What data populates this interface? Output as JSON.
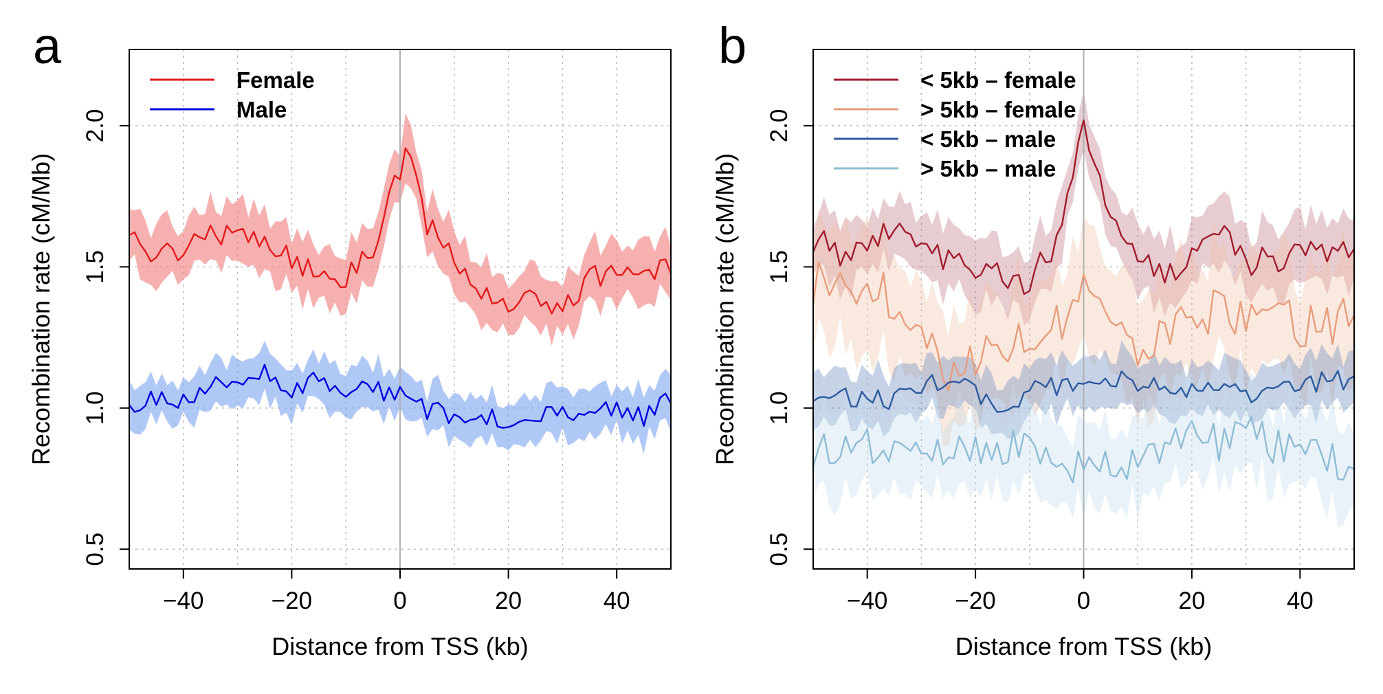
{
  "chart_data": [
    {
      "type": "line",
      "panel_label": "a",
      "xlabel": "Distance from TSS (kb)",
      "ylabel": "Recombination rate (cM/Mb)",
      "xlim": [
        -50,
        50
      ],
      "ylim": [
        0.43,
        2.27
      ],
      "xticks": [
        -40,
        -20,
        0,
        20,
        40
      ],
      "yticks": [
        0.5,
        1.0,
        1.5,
        2.0
      ],
      "xtick_labels": [
        "−40",
        "−20",
        "0",
        "20",
        "40"
      ],
      "ytick_labels": [
        "0.5",
        "1.0",
        "1.5",
        "2.0"
      ],
      "grid": true,
      "legend_position": "top-left",
      "band_halfwidth_note": "",
      "series": [
        {
          "name": "Female",
          "color": "#e31a1c",
          "band_color": "#f08080",
          "band_halfwidth": 0.1,
          "x": [
            -50,
            -45,
            -40,
            -35,
            -30,
            -25,
            -20,
            -15,
            -10,
            -5,
            -2,
            0,
            1,
            2,
            5,
            10,
            15,
            20,
            25,
            30,
            35,
            40,
            45,
            50
          ],
          "values": [
            1.6,
            1.55,
            1.57,
            1.63,
            1.6,
            1.6,
            1.53,
            1.47,
            1.46,
            1.57,
            1.72,
            1.85,
            1.92,
            1.88,
            1.65,
            1.52,
            1.4,
            1.37,
            1.4,
            1.36,
            1.46,
            1.47,
            1.48,
            1.52
          ]
        },
        {
          "name": "Male",
          "color": "#0000e0",
          "band_color": "#7fa6f0",
          "band_halfwidth": 0.08,
          "x": [
            -50,
            -45,
            -40,
            -35,
            -30,
            -25,
            -20,
            -15,
            -10,
            -5,
            0,
            5,
            10,
            15,
            20,
            25,
            30,
            35,
            40,
            45,
            50
          ],
          "values": [
            1.0,
            1.04,
            1.03,
            1.08,
            1.06,
            1.14,
            1.07,
            1.1,
            1.05,
            1.07,
            1.04,
            0.99,
            0.98,
            0.98,
            0.95,
            0.98,
            0.97,
            1.0,
            1.0,
            0.96,
            1.04
          ]
        }
      ]
    },
    {
      "type": "line",
      "panel_label": "b",
      "xlabel": "Distance from TSS (kb)",
      "ylabel": "Recombination rate (cM/Mb)",
      "xlim": [
        -50,
        50
      ],
      "ylim": [
        0.43,
        2.27
      ],
      "xticks": [
        -40,
        -20,
        0,
        20,
        40
      ],
      "yticks": [
        0.5,
        1.0,
        1.5,
        2.0
      ],
      "xtick_labels": [
        "−40",
        "−20",
        "0",
        "20",
        "40"
      ],
      "ytick_labels": [
        "0.5",
        "1.0",
        "1.5",
        "2.0"
      ],
      "grid": true,
      "legend_position": "top-left",
      "series": [
        {
          "name": "< 5kb – female",
          "color": "#a01c2c",
          "band_color": "#c07888",
          "band_halfwidth": 0.11,
          "x": [
            -50,
            -45,
            -40,
            -35,
            -30,
            -25,
            -20,
            -15,
            -10,
            -5,
            -2,
            0,
            2,
            5,
            10,
            15,
            20,
            25,
            30,
            35,
            40,
            45,
            50
          ],
          "values": [
            1.6,
            1.55,
            1.58,
            1.65,
            1.6,
            1.52,
            1.5,
            1.48,
            1.44,
            1.6,
            1.8,
            2.0,
            1.88,
            1.7,
            1.55,
            1.45,
            1.55,
            1.64,
            1.52,
            1.52,
            1.55,
            1.55,
            1.58
          ]
        },
        {
          "name": "> 5kb – female",
          "color": "#e89c7c",
          "band_color": "#f2c4a8",
          "band_halfwidth": 0.2,
          "x": [
            -50,
            -45,
            -40,
            -35,
            -30,
            -25,
            -20,
            -15,
            -10,
            -5,
            0,
            5,
            10,
            15,
            20,
            25,
            30,
            35,
            40,
            45,
            50
          ],
          "values": [
            1.45,
            1.42,
            1.38,
            1.4,
            1.3,
            1.15,
            1.2,
            1.25,
            1.22,
            1.3,
            1.45,
            1.35,
            1.2,
            1.3,
            1.28,
            1.35,
            1.32,
            1.42,
            1.3,
            1.3,
            1.33
          ]
        },
        {
          "name": "< 5kb – male",
          "color": "#2e5aa0",
          "band_color": "#6a8cc0",
          "band_halfwidth": 0.09,
          "x": [
            -50,
            -45,
            -40,
            -35,
            -30,
            -25,
            -20,
            -15,
            -10,
            -5,
            0,
            5,
            10,
            15,
            20,
            25,
            30,
            35,
            40,
            45,
            50
          ],
          "values": [
            1.06,
            1.05,
            1.04,
            1.03,
            1.05,
            1.12,
            1.04,
            1.02,
            1.05,
            1.08,
            1.08,
            1.1,
            1.08,
            1.07,
            1.06,
            1.07,
            1.03,
            1.06,
            1.08,
            1.1,
            1.1
          ]
        },
        {
          "name": "> 5kb – male",
          "color": "#8ebcd6",
          "band_color": "#c4dcec",
          "band_halfwidth": 0.15,
          "x": [
            -50,
            -45,
            -40,
            -35,
            -30,
            -25,
            -20,
            -15,
            -10,
            -5,
            0,
            5,
            10,
            15,
            20,
            25,
            30,
            35,
            40,
            45,
            50
          ],
          "values": [
            0.85,
            0.84,
            0.86,
            0.88,
            0.82,
            0.86,
            0.84,
            0.86,
            0.85,
            0.82,
            0.78,
            0.8,
            0.82,
            0.86,
            0.9,
            0.88,
            0.92,
            0.86,
            0.86,
            0.84,
            0.74
          ]
        }
      ]
    }
  ]
}
